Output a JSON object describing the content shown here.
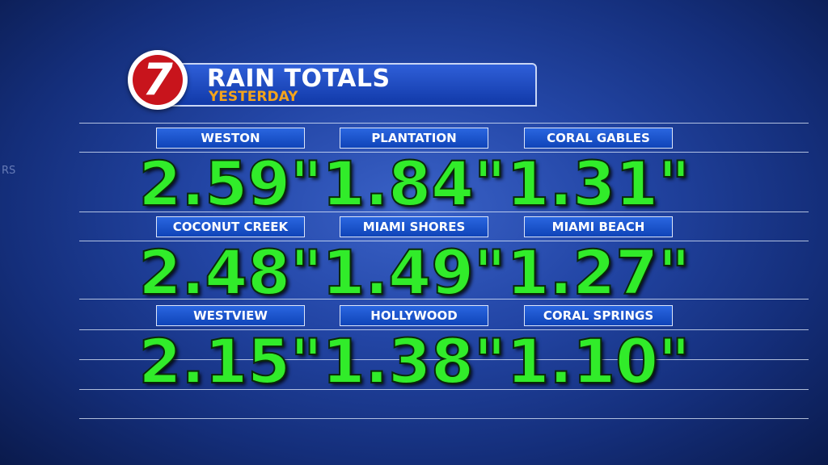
{
  "logo": "7",
  "header": {
    "title": "RAIN TOTALS",
    "subtitle": "YESTERDAY"
  },
  "background_text": "RS",
  "rows": [
    [
      {
        "location": "WESTON",
        "total": "2.59\""
      },
      {
        "location": "PLANTATION",
        "total": "1.84\""
      },
      {
        "location": "CORAL GABLES",
        "total": "1.31\""
      }
    ],
    [
      {
        "location": "COCONUT CREEK",
        "total": "2.48\""
      },
      {
        "location": "MIAMI SHORES",
        "total": "1.49\""
      },
      {
        "location": "MIAMI BEACH",
        "total": "1.27\""
      }
    ],
    [
      {
        "location": "WESTVIEW",
        "total": "2.15\""
      },
      {
        "location": "HOLLYWOOD",
        "total": "1.38\""
      },
      {
        "location": "CORAL SPRINGS",
        "total": "1.10\""
      }
    ]
  ]
}
